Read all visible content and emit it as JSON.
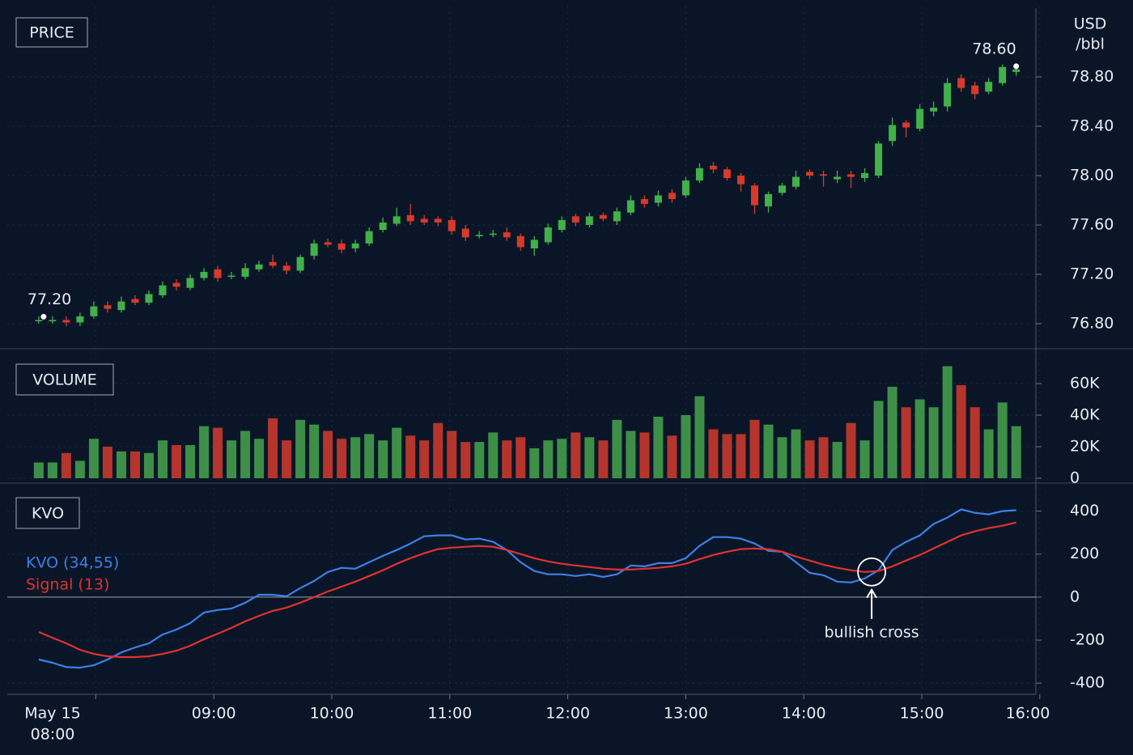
{
  "chart_data": [
    {
      "type": "candlestick",
      "title": "PRICE",
      "y_label": [
        "USD",
        "/bbl"
      ],
      "x": [
        451,
        458,
        465,
        472,
        479,
        486,
        493,
        500,
        507,
        514,
        521,
        528,
        535,
        542,
        549,
        556,
        563,
        570,
        577,
        584,
        591,
        598,
        605,
        612,
        619,
        626,
        633,
        640,
        647,
        654,
        661,
        668,
        675,
        682,
        689,
        696,
        703,
        710,
        717,
        724,
        731,
        738,
        745,
        752,
        759,
        766,
        773,
        780,
        787,
        794,
        801,
        808,
        815,
        822,
        829,
        836,
        843,
        850,
        857,
        864,
        871,
        878,
        885,
        892,
        899,
        906,
        913,
        920,
        927,
        934,
        941,
        948
      ],
      "open": [
        76.83,
        76.83,
        76.83,
        76.81,
        76.86,
        76.95,
        76.91,
        77.0,
        76.97,
        77.03,
        77.13,
        77.09,
        77.17,
        77.24,
        77.18,
        77.18,
        77.24,
        77.3,
        77.27,
        77.23,
        77.35,
        77.46,
        77.45,
        77.41,
        77.45,
        77.56,
        77.61,
        77.68,
        77.65,
        77.65,
        77.64,
        77.57,
        77.51,
        77.52,
        77.54,
        77.51,
        77.41,
        77.46,
        77.56,
        77.67,
        77.6,
        77.68,
        77.63,
        77.7,
        77.81,
        77.78,
        77.86,
        77.84,
        77.96,
        78.08,
        78.05,
        78.0,
        77.92,
        77.75,
        77.86,
        77.91,
        78.03,
        78.01,
        77.97,
        78.01,
        77.98,
        78.0,
        78.28,
        78.43,
        78.38,
        78.52,
        78.56,
        78.79,
        78.73,
        78.68,
        78.75,
        78.84
      ],
      "high": [
        76.86,
        76.86,
        76.86,
        76.89,
        76.98,
        76.98,
        77.02,
        77.03,
        77.07,
        77.14,
        77.16,
        77.2,
        77.25,
        77.27,
        77.22,
        77.29,
        77.31,
        77.36,
        77.3,
        77.36,
        77.48,
        77.49,
        77.48,
        77.48,
        77.58,
        77.66,
        77.74,
        77.77,
        77.68,
        77.67,
        77.67,
        77.6,
        77.55,
        77.56,
        77.58,
        77.53,
        77.51,
        77.61,
        77.67,
        77.69,
        77.7,
        77.7,
        77.74,
        77.84,
        77.84,
        77.88,
        77.89,
        77.99,
        78.1,
        78.11,
        78.07,
        78.02,
        77.94,
        77.87,
        77.94,
        78.04,
        78.05,
        78.04,
        78.04,
        78.04,
        78.06,
        78.28,
        78.47,
        78.45,
        78.58,
        78.6,
        78.79,
        78.82,
        78.76,
        78.79,
        78.9,
        78.9
      ],
      "low": [
        76.8,
        76.8,
        76.78,
        76.78,
        76.84,
        76.89,
        76.89,
        76.95,
        76.95,
        77.01,
        77.07,
        77.07,
        77.15,
        77.14,
        77.16,
        77.16,
        77.22,
        77.25,
        77.2,
        77.21,
        77.32,
        77.42,
        77.37,
        77.38,
        77.43,
        77.54,
        77.59,
        77.6,
        77.6,
        77.59,
        77.52,
        77.47,
        77.49,
        77.5,
        77.47,
        77.39,
        77.35,
        77.44,
        77.54,
        77.59,
        77.58,
        77.63,
        77.6,
        77.68,
        77.74,
        77.75,
        77.78,
        77.82,
        77.94,
        78.02,
        77.96,
        77.87,
        77.69,
        77.7,
        77.84,
        77.89,
        77.97,
        77.91,
        77.94,
        77.9,
        77.95,
        77.98,
        78.24,
        78.31,
        78.36,
        78.48,
        78.52,
        78.68,
        78.62,
        78.66,
        78.73,
        78.81
      ],
      "close": [
        76.83,
        76.83,
        76.81,
        76.86,
        76.94,
        76.92,
        76.98,
        76.97,
        77.04,
        77.11,
        77.1,
        77.17,
        77.22,
        77.17,
        77.19,
        77.25,
        77.28,
        77.27,
        77.23,
        77.34,
        77.45,
        77.44,
        77.4,
        77.45,
        77.55,
        77.62,
        77.67,
        77.63,
        77.62,
        77.62,
        77.55,
        77.5,
        77.52,
        77.53,
        77.5,
        77.42,
        77.48,
        77.58,
        77.64,
        77.62,
        77.67,
        77.65,
        77.71,
        77.8,
        77.77,
        77.84,
        77.81,
        77.96,
        78.06,
        78.05,
        77.98,
        77.93,
        77.76,
        77.85,
        77.92,
        77.99,
        78.0,
        78.0,
        77.99,
        77.99,
        78.02,
        78.26,
        78.41,
        78.39,
        78.54,
        78.55,
        78.75,
        78.71,
        78.66,
        78.76,
        78.88,
        78.86
      ],
      "up_color": "#43b04a",
      "down_color": "#d8392b",
      "ylim": [
        76.6,
        79.4
      ],
      "yticks": [
        {
          "value": 76.8,
          "label": "76.80"
        },
        {
          "value": 77.2,
          "label": "77.20"
        },
        {
          "value": 77.6,
          "label": "77.60"
        },
        {
          "value": 78.0,
          "label": "78.00"
        },
        {
          "value": 78.4,
          "label": "78.40"
        },
        {
          "value": 78.8,
          "label": "78.80"
        }
      ],
      "grid": true,
      "annotations": [
        {
          "text": "77.20",
          "x": 451
        },
        {
          "text": "78.60",
          "x": 948
        }
      ]
    },
    {
      "type": "bar",
      "title": "VOLUME",
      "values": [
        10000,
        10000,
        16000,
        11000,
        25000,
        20000,
        17000,
        17000,
        16000,
        24000,
        21000,
        21000,
        33000,
        32000,
        24000,
        30000,
        25000,
        38000,
        24000,
        37000,
        34000,
        30000,
        25000,
        26000,
        28000,
        24000,
        32000,
        27000,
        24000,
        35000,
        30000,
        23000,
        23000,
        29000,
        24000,
        26000,
        19000,
        24000,
        25000,
        29000,
        26000,
        24000,
        37000,
        30000,
        29000,
        39000,
        27000,
        40000,
        52000,
        31000,
        28000,
        28000,
        37000,
        34000,
        26000,
        31000,
        24000,
        26000,
        23000,
        35000,
        24000,
        49000,
        58000,
        45000,
        50000,
        45000,
        71000,
        59000,
        45000,
        31000,
        48000,
        33000
      ],
      "up_color": "#3d8f48",
      "down_color": "#b5352c",
      "ylim": [
        0,
        80000
      ],
      "yticks": [
        0,
        {
          "value": 20000,
          "label": "20K"
        },
        {
          "value": 40000,
          "label": "40K"
        },
        {
          "value": 60000,
          "label": "60K"
        }
      ],
      "grid": true
    },
    {
      "type": "line",
      "title": "KVO",
      "series": [
        {
          "name": "KVO (34,55)",
          "color": "#3f7fe6",
          "values": [
            -290,
            -305,
            -325,
            -328,
            -317,
            -290,
            -257,
            -234,
            -215,
            -174,
            -151,
            -121,
            -72,
            -60,
            -53,
            -26,
            11,
            11,
            4,
            42,
            75,
            117,
            136,
            132,
            162,
            192,
            219,
            249,
            283,
            287,
            287,
            268,
            272,
            257,
            219,
            162,
            121,
            106,
            106,
            98,
            106,
            94,
            106,
            147,
            143,
            158,
            158,
            181,
            238,
            279,
            279,
            272,
            249,
            215,
            211,
            162,
            113,
            102,
            72,
            68,
            87,
            125,
            219,
            257,
            287,
            340,
            370,
            408,
            392,
            385,
            400,
            404
          ]
        },
        {
          "name": "Signal (13)",
          "color": "#e0322e",
          "values": [
            -162,
            -189,
            -215,
            -245,
            -264,
            -275,
            -279,
            -279,
            -275,
            -264,
            -249,
            -226,
            -196,
            -170,
            -143,
            -113,
            -87,
            -64,
            -49,
            -26,
            0,
            26,
            49,
            72,
            98,
            125,
            155,
            181,
            204,
            223,
            230,
            234,
            238,
            234,
            219,
            200,
            181,
            166,
            155,
            147,
            140,
            132,
            128,
            128,
            132,
            136,
            143,
            155,
            177,
            196,
            211,
            223,
            226,
            223,
            211,
            189,
            170,
            151,
            136,
            125,
            117,
            121,
            143,
            170,
            196,
            226,
            257,
            287,
            306,
            321,
            332,
            347
          ]
        }
      ],
      "ylim": [
        -450,
        500
      ],
      "yticks": [
        -400,
        -200,
        0,
        200,
        400
      ],
      "grid": true,
      "annotations": [
        {
          "text": "bullish cross",
          "x": 874.5,
          "y": 117
        }
      ],
      "xlim": [
        435,
        958
      ],
      "date_label": "May 15",
      "xticks": [
        {
          "value": 480,
          "label": "08:00"
        },
        {
          "value": 540,
          "label": "09:00"
        },
        {
          "value": 600,
          "label": "10:00"
        },
        {
          "value": 660,
          "label": "11:00"
        },
        {
          "value": 720,
          "label": "12:00"
        },
        {
          "value": 780,
          "label": "13:00"
        },
        {
          "value": 840,
          "label": "14:00"
        },
        {
          "value": 900,
          "label": "15:00"
        },
        {
          "value": 960,
          "label": "16:00"
        }
      ]
    }
  ]
}
